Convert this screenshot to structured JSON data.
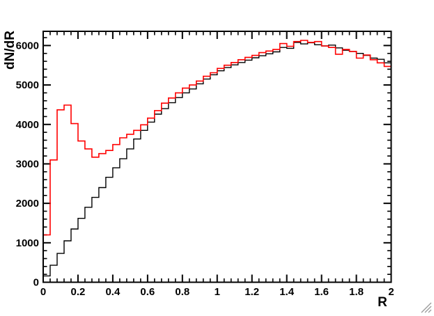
{
  "canvas": {
    "background": "#ffffff",
    "frame_color": "#000000"
  },
  "chart_data": {
    "type": "line",
    "style": "step-histogram",
    "title": "",
    "xlabel": "R",
    "ylabel": "dN/dR",
    "xlim": [
      0,
      2
    ],
    "ylim": [
      0,
      6360
    ],
    "grid": false,
    "legend": "none",
    "bin_width": 0.04,
    "x_major_ticks": [
      0,
      0.2,
      0.4,
      0.6,
      0.8,
      1,
      1.2,
      1.4,
      1.6,
      1.8,
      2
    ],
    "x_tick_labels": [
      "0",
      "0.2",
      "0.4",
      "0.6",
      "0.8",
      "1",
      "1.2",
      "1.4",
      "1.6",
      "1.8",
      "2"
    ],
    "x_minor_step": 0.04,
    "y_major_ticks": [
      0,
      1000,
      2000,
      3000,
      4000,
      5000,
      6000
    ],
    "y_tick_labels": [
      "0",
      "1000",
      "2000",
      "3000",
      "4000",
      "5000",
      "6000"
    ],
    "y_minor_step": 200,
    "series": [
      {
        "name": "black-histogram",
        "color": "#000000",
        "values": [
          160,
          430,
          730,
          1050,
          1350,
          1620,
          1900,
          2150,
          2400,
          2660,
          2900,
          3130,
          3380,
          3630,
          3850,
          4060,
          4260,
          4400,
          4550,
          4680,
          4800,
          4900,
          5030,
          5150,
          5260,
          5360,
          5440,
          5510,
          5570,
          5630,
          5690,
          5740,
          5790,
          5840,
          5950,
          5930,
          6080,
          6040,
          6070,
          6020,
          5990,
          6010,
          5940,
          5880,
          5850,
          5800,
          5750,
          5680,
          5650,
          5560
        ]
      },
      {
        "name": "red-histogram",
        "color": "#ff0000",
        "values": [
          1200,
          3100,
          4370,
          4490,
          4020,
          3580,
          3380,
          3170,
          3260,
          3340,
          3490,
          3660,
          3750,
          3850,
          3990,
          4160,
          4350,
          4540,
          4670,
          4800,
          4920,
          5000,
          5100,
          5220,
          5310,
          5420,
          5500,
          5570,
          5640,
          5700,
          5750,
          5820,
          5860,
          5900,
          6050,
          5980,
          6100,
          6130,
          6080,
          6100,
          5990,
          5950,
          5780,
          5900,
          5850,
          5680,
          5760,
          5640,
          5560,
          5470
        ]
      }
    ]
  },
  "icons": {
    "resize_grip": "diagonal-hatch-resize-handle",
    "resize_grip_color": "#9c9c9c"
  }
}
